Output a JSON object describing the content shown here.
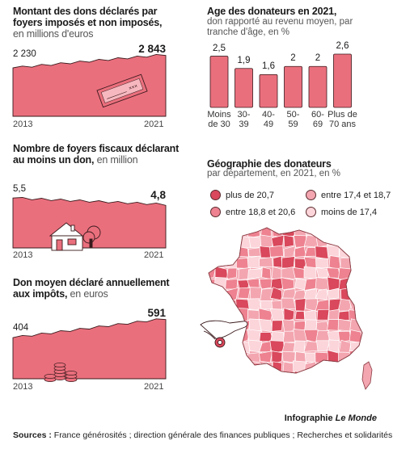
{
  "colors": {
    "accent": "#ea6f7d",
    "dark": "#3a1a1c",
    "tier1": "#d9485c",
    "tier2": "#ee8290",
    "tier3": "#f3a6b0",
    "tier4": "#fbd5da"
  },
  "chart_data": [
    {
      "type": "area",
      "title": "Montant des dons déclarés par foyers imposés et non imposés,",
      "unit": "en millions d'euros",
      "x": [
        "2013",
        "2021"
      ],
      "values": [
        2230,
        2843
      ],
      "value_labels": [
        "2 230",
        "2 843"
      ],
      "icon": "cheque-icon"
    },
    {
      "type": "area",
      "title": "Nombre de foyers fiscaux déclarant au moins un don,",
      "unit": "en million",
      "x": [
        "2013",
        "2021"
      ],
      "values": [
        5.5,
        4.8
      ],
      "value_labels": [
        "5,5",
        "4,8"
      ],
      "icon": "house-icon"
    },
    {
      "type": "area",
      "title": "Don moyen déclaré annuellement aux impôts,",
      "unit": "en euros",
      "x": [
        "2013",
        "2021"
      ],
      "values": [
        404,
        591
      ],
      "value_labels": [
        "404",
        "591"
      ],
      "icon": "coins-icon"
    },
    {
      "type": "bar",
      "title": "Age des donateurs en 2021,",
      "subtitle": "don rapporté au revenu moyen, par tranche d'âge, en %",
      "categories": [
        "Moins de 30",
        "30-39",
        "40-49",
        "50-59",
        "60-69",
        "Plus de 70 ans"
      ],
      "category_lines": [
        [
          "Moins",
          "de 30"
        ],
        [
          "30-",
          "39"
        ],
        [
          "40-",
          "49"
        ],
        [
          "50-",
          "59"
        ],
        [
          "60-",
          "69"
        ],
        [
          "Plus de",
          "70 ans"
        ]
      ],
      "values": [
        2.5,
        1.9,
        1.6,
        2,
        2,
        2.6
      ],
      "value_labels": [
        "2,5",
        "1,9",
        "1,6",
        "2",
        "2",
        "2,6"
      ],
      "ylim": [
        0,
        2.6
      ]
    },
    {
      "type": "heatmap",
      "title": "Géographie des donateurs",
      "subtitle": "par département,  en 2021, en %",
      "legend": [
        {
          "label": "plus de 20,7",
          "color": "#d9485c"
        },
        {
          "label": "entre 17,4 et 18,7",
          "color": "#f3a6b0"
        },
        {
          "label": "entre 18,8 et 20,6",
          "color": "#ee8290"
        },
        {
          "label": "moins de 17,4",
          "color": "#fbd5da"
        }
      ]
    }
  ],
  "footer": {
    "credit_prefix": "Infographie ",
    "credit_brand": "Le Monde",
    "sources_label": "Sources :",
    "sources_text": " France générosités ; direction générale des finances publiques ; Recherches et solidarités"
  }
}
